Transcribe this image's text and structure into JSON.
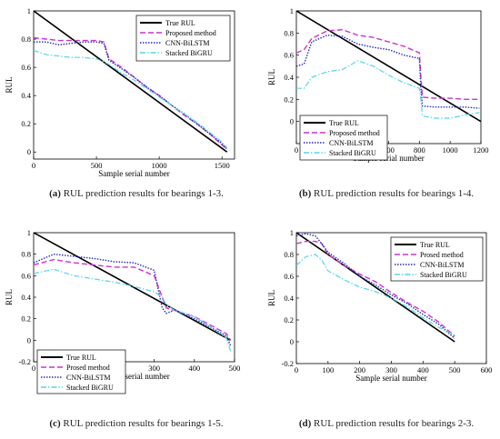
{
  "colors": {
    "true_rul": "#000000",
    "proposed": "#cc33cc",
    "cnn_bilstm": "#2a2ab8",
    "stacked_bigru": "#55d6e6"
  },
  "chart_data": [
    {
      "id": "a",
      "type": "line",
      "xlabel": "Sample serial number",
      "ylabel": "RUL",
      "xlim": [
        0,
        1600
      ],
      "ylim": [
        -0.05,
        1.0
      ],
      "xticks": [
        0,
        500,
        1000,
        1500
      ],
      "yticks": [
        0,
        0.2,
        0.4,
        0.6,
        0.8,
        1
      ],
      "ytick_labels": [
        "0",
        "0.2",
        "0.4",
        "0.6",
        "0.8",
        "1"
      ],
      "legend": "top-right",
      "caption_label": "(a)",
      "caption_text": "RUL prediction results for bearings 1-3.",
      "series": [
        {
          "name": "True RUL",
          "style": "solid",
          "x": [
            0,
            1540
          ],
          "y": [
            1.0,
            0.0
          ]
        },
        {
          "name": "Proposed method",
          "style": "dashed",
          "x": [
            0,
            100,
            200,
            300,
            400,
            500,
            560,
            600,
            700,
            800,
            900,
            1000,
            1100,
            1200,
            1300,
            1400,
            1500,
            1540
          ],
          "y": [
            0.81,
            0.8,
            0.79,
            0.79,
            0.79,
            0.79,
            0.78,
            0.66,
            0.6,
            0.53,
            0.46,
            0.4,
            0.33,
            0.26,
            0.2,
            0.13,
            0.05,
            0.02
          ]
        },
        {
          "name": "CNN-BiLSTM",
          "style": "dotted",
          "x": [
            0,
            100,
            200,
            300,
            400,
            500,
            560,
            600,
            700,
            800,
            900,
            1000,
            1100,
            1200,
            1300,
            1400,
            1500,
            1540
          ],
          "y": [
            0.78,
            0.78,
            0.76,
            0.77,
            0.78,
            0.78,
            0.77,
            0.65,
            0.59,
            0.53,
            0.46,
            0.4,
            0.33,
            0.27,
            0.2,
            0.13,
            0.06,
            0.02
          ]
        },
        {
          "name": "Stacked BiGRU",
          "style": "dashdot",
          "x": [
            0,
            100,
            200,
            300,
            400,
            500,
            560,
            600,
            700,
            800,
            900,
            1000,
            1100,
            1200,
            1300,
            1400,
            1500,
            1540
          ],
          "y": [
            0.72,
            0.69,
            0.68,
            0.67,
            0.67,
            0.66,
            0.64,
            0.62,
            0.56,
            0.51,
            0.45,
            0.39,
            0.33,
            0.27,
            0.21,
            0.14,
            0.07,
            0.03
          ]
        }
      ]
    },
    {
      "id": "b",
      "type": "line",
      "xlabel": "Sample serial number",
      "ylabel": "RUL",
      "xlim": [
        0,
        1200
      ],
      "ylim": [
        -0.2,
        1.0
      ],
      "xticks": [
        0,
        200,
        400,
        600,
        800,
        1000,
        1200
      ],
      "yticks": [
        0,
        0.2,
        0.4,
        0.6,
        0.8,
        1
      ],
      "ytick_labels": [
        "0",
        "0.2",
        "0.4",
        "0.6",
        "0.8",
        "1"
      ],
      "legend": "lower-left",
      "caption_label": "(b)",
      "caption_text": "RUL prediction results for bearings 1-4.",
      "series": [
        {
          "name": "True RUL",
          "style": "solid",
          "x": [
            0,
            1200
          ],
          "y": [
            1.0,
            0.0
          ]
        },
        {
          "name": "Proposed method",
          "style": "dashed",
          "x": [
            0,
            50,
            100,
            200,
            300,
            400,
            500,
            600,
            700,
            800,
            810,
            820,
            900,
            1000,
            1100,
            1190
          ],
          "y": [
            0.62,
            0.65,
            0.75,
            0.82,
            0.83,
            0.78,
            0.76,
            0.72,
            0.68,
            0.62,
            0.4,
            0.22,
            0.21,
            0.21,
            0.2,
            0.2
          ]
        },
        {
          "name": "CNN-BiLSTM",
          "style": "dotted",
          "x": [
            0,
            50,
            100,
            200,
            300,
            400,
            500,
            600,
            700,
            800,
            810,
            820,
            900,
            1000,
            1100,
            1190
          ],
          "y": [
            0.5,
            0.52,
            0.72,
            0.78,
            0.77,
            0.7,
            0.67,
            0.65,
            0.6,
            0.57,
            0.3,
            0.14,
            0.13,
            0.13,
            0.13,
            0.12
          ]
        },
        {
          "name": "Stacked BiGRU",
          "style": "dashdot",
          "x": [
            0,
            50,
            100,
            200,
            300,
            400,
            500,
            600,
            700,
            800,
            810,
            820,
            900,
            1000,
            1100,
            1190
          ],
          "y": [
            0.3,
            0.3,
            0.4,
            0.45,
            0.47,
            0.55,
            0.5,
            0.42,
            0.35,
            0.3,
            0.2,
            0.05,
            0.03,
            0.03,
            0.06,
            0.08
          ]
        }
      ]
    },
    {
      "id": "c",
      "type": "line",
      "xlabel": "Sample serial number",
      "ylabel": "RUL",
      "xlim": [
        0,
        500
      ],
      "ylim": [
        -0.2,
        1.0
      ],
      "xticks": [
        0,
        100,
        200,
        300,
        400,
        500
      ],
      "yticks": [
        -0.2,
        0,
        0.2,
        0.4,
        0.6,
        0.8,
        1
      ],
      "ytick_labels": [
        "-0.2",
        "0",
        "0.2",
        "0.4",
        "0.6",
        "0.8",
        "1"
      ],
      "legend": "lower-left",
      "caption_label": "(c)",
      "caption_text": "RUL prediction results for bearings 1-5.",
      "series": [
        {
          "name": "True RUL",
          "style": "solid",
          "x": [
            0,
            490
          ],
          "y": [
            1.0,
            0.0
          ]
        },
        {
          "name": "Prosed method",
          "style": "dashed",
          "x": [
            0,
            50,
            100,
            150,
            200,
            250,
            300,
            320,
            330,
            350,
            400,
            450,
            480,
            490
          ],
          "y": [
            0.7,
            0.75,
            0.72,
            0.7,
            0.68,
            0.68,
            0.6,
            0.4,
            0.3,
            0.28,
            0.22,
            0.12,
            0.06,
            0.0
          ]
        },
        {
          "name": "CNN-BiLSTM",
          "style": "dotted",
          "x": [
            0,
            50,
            100,
            150,
            200,
            250,
            300,
            320,
            330,
            350,
            400,
            450,
            480,
            490
          ],
          "y": [
            0.72,
            0.8,
            0.78,
            0.76,
            0.73,
            0.72,
            0.65,
            0.3,
            0.25,
            0.28,
            0.2,
            0.1,
            0.04,
            -0.05
          ]
        },
        {
          "name": "Stacked BiGRU",
          "style": "dashdot",
          "x": [
            0,
            50,
            100,
            150,
            200,
            250,
            300,
            320,
            330,
            350,
            400,
            450,
            480,
            490
          ],
          "y": [
            0.62,
            0.66,
            0.6,
            0.57,
            0.54,
            0.5,
            0.45,
            0.4,
            0.33,
            0.28,
            0.22,
            0.1,
            0.02,
            -0.1
          ]
        }
      ]
    },
    {
      "id": "d",
      "type": "line",
      "xlabel": "Sample serial number",
      "ylabel": "RUL",
      "xlim": [
        0,
        600
      ],
      "ylim": [
        -0.2,
        1.0
      ],
      "xticks": [
        0,
        100,
        200,
        300,
        400,
        500,
        600
      ],
      "yticks": [
        -0.2,
        0,
        0.2,
        0.4,
        0.6,
        0.8,
        1
      ],
      "ytick_labels": [
        "-0.2",
        "0",
        "0.2",
        "0.4",
        "0.6",
        "0.8",
        "1"
      ],
      "legend": "top-right",
      "caption_label": "(d)",
      "caption_text": "RUL prediction results for bearings 2-3.",
      "series": [
        {
          "name": "True RUL",
          "style": "solid",
          "x": [
            0,
            500
          ],
          "y": [
            1.0,
            0.0
          ]
        },
        {
          "name": "Prosed method",
          "style": "dashed",
          "x": [
            0,
            30,
            60,
            80,
            100,
            150,
            200,
            250,
            300,
            350,
            400,
            450,
            500
          ],
          "y": [
            0.9,
            0.92,
            0.92,
            0.9,
            0.8,
            0.7,
            0.62,
            0.55,
            0.45,
            0.36,
            0.28,
            0.18,
            0.05
          ]
        },
        {
          "name": "CNN-BiLSTM",
          "style": "dotted",
          "x": [
            0,
            30,
            60,
            80,
            100,
            150,
            200,
            250,
            300,
            350,
            400,
            450,
            500
          ],
          "y": [
            0.97,
            0.99,
            0.97,
            0.9,
            0.82,
            0.72,
            0.6,
            0.52,
            0.43,
            0.35,
            0.25,
            0.16,
            0.03
          ]
        },
        {
          "name": "Stacked BiGRU",
          "style": "dashdot",
          "x": [
            0,
            30,
            60,
            80,
            100,
            150,
            200,
            250,
            300,
            350,
            400,
            450,
            500
          ],
          "y": [
            0.7,
            0.78,
            0.8,
            0.75,
            0.65,
            0.57,
            0.5,
            0.46,
            0.4,
            0.32,
            0.22,
            0.13,
            0.06
          ]
        }
      ]
    }
  ]
}
